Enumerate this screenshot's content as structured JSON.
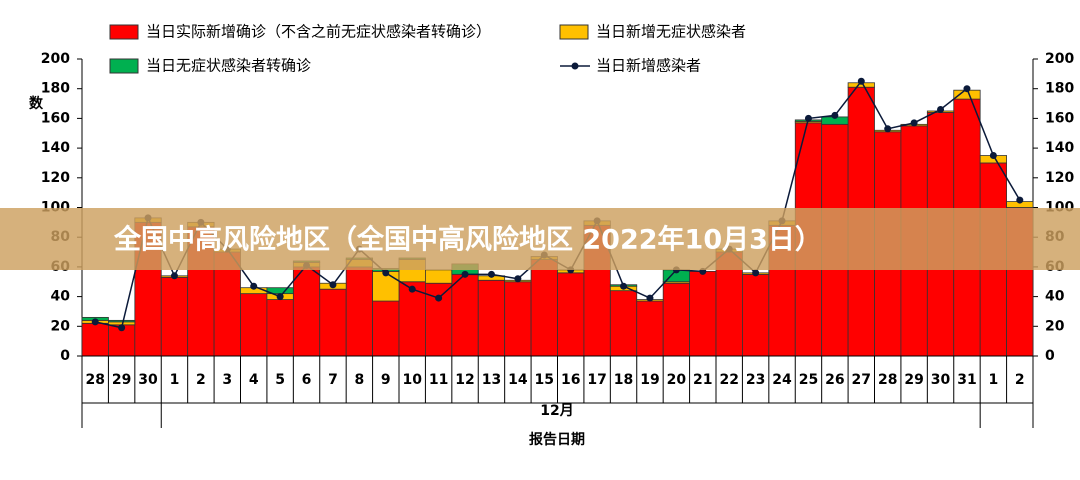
{
  "chart_data": {
    "type": "bar",
    "y_label": "数",
    "x_label": "报告日期",
    "month_label": "12月",
    "overlay_title": "全国中高风险地区（全国中高风险地区 2022年10月3日）",
    "categories": [
      "28",
      "29",
      "30",
      "1",
      "2",
      "3",
      "4",
      "5",
      "6",
      "7",
      "8",
      "9",
      "10",
      "11",
      "12",
      "13",
      "14",
      "15",
      "16",
      "17",
      "18",
      "19",
      "20",
      "21",
      "22",
      "23",
      "24",
      "25",
      "26",
      "27",
      "28",
      "29",
      "30",
      "31",
      "1",
      "2"
    ],
    "series": [
      {
        "name": "当日实际新增确诊（不含之前无症状感染者转确诊）",
        "color": "#ff0000",
        "kind": "bar",
        "values": [
          22,
          21,
          90,
          53,
          87,
          70,
          42,
          38,
          60,
          45,
          60,
          37,
          50,
          49,
          55,
          51,
          50,
          65,
          56,
          88,
          44,
          37,
          49,
          57,
          70,
          55,
          88,
          157,
          156,
          181,
          151,
          155,
          164,
          173,
          130,
          100
        ]
      },
      {
        "name": "当日新增无症状感染者",
        "color": "#ffc000",
        "kind": "bar",
        "values": [
          2,
          2,
          3,
          1,
          3,
          2,
          4,
          4,
          3,
          4,
          5,
          20,
          15,
          9,
          0,
          3,
          1,
          2,
          2,
          3,
          3,
          1,
          1,
          0,
          2,
          1,
          3,
          1,
          0,
          3,
          1,
          1,
          1,
          6,
          5,
          4
        ]
      },
      {
        "name": "当日无症状感染者转确诊",
        "color": "#00b050",
        "kind": "bar",
        "values": [
          2,
          1,
          0,
          0,
          0,
          0,
          0,
          4,
          1,
          0,
          1,
          2,
          1,
          0,
          7,
          0,
          0,
          0,
          0,
          0,
          1,
          0,
          8,
          0,
          0,
          0,
          0,
          1,
          5,
          0,
          0,
          0,
          0,
          0,
          0,
          0
        ]
      },
      {
        "name": "当日新增感染者",
        "color": "#0b1a3a",
        "kind": "line",
        "axis": "y2",
        "values": [
          23,
          19,
          93,
          54,
          90,
          72,
          47,
          40,
          61,
          48,
          72,
          56,
          45,
          39,
          55,
          55,
          52,
          68,
          58,
          91,
          47,
          39,
          58,
          57,
          72,
          56,
          91,
          160,
          162,
          185,
          153,
          157,
          166,
          180,
          135,
          105
        ]
      }
    ],
    "ylim": [
      0,
      200
    ],
    "yticks": [
      0,
      20,
      40,
      60,
      80,
      100,
      120,
      140,
      160,
      180,
      200
    ],
    "y2lim": [
      0,
      200
    ],
    "y2ticks": [
      0,
      20,
      40,
      60,
      80,
      100,
      120,
      140,
      160,
      180,
      200
    ]
  }
}
